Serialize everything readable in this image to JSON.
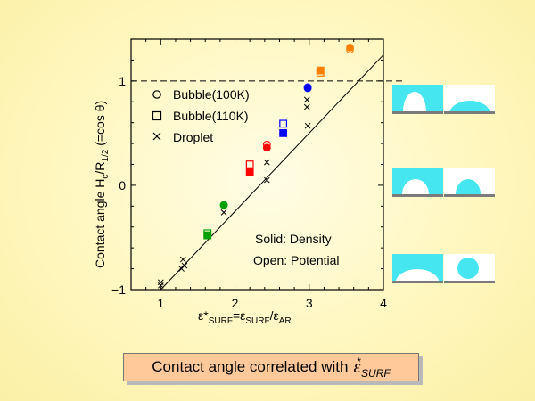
{
  "chart_data": {
    "type": "scatter",
    "xlabel_parts": [
      "ε*",
      "SURF",
      "=ε",
      "SURF",
      "/ε",
      "AR"
    ],
    "ylabel_parts": [
      "Contact angle H",
      "c",
      "/R",
      "1/2",
      " (=cos θ)"
    ],
    "xlim": [
      0.6,
      4.0
    ],
    "ylim": [
      -1.0,
      1.4
    ],
    "x_ticks": [
      "1",
      "2",
      "3",
      "4"
    ],
    "y_ticks": [
      "1",
      "0",
      "−1"
    ],
    "x_tick_values": [
      1,
      2,
      3,
      4
    ],
    "y_tick_values": [
      1,
      0,
      -1
    ],
    "reference_line_y": 1,
    "fit_line": [
      [
        1.0,
        -1.0
      ],
      [
        4.0,
        1.25
      ]
    ],
    "legend": [
      "Bubble(100K)",
      "Bubble(110K)",
      "Droplet"
    ],
    "annotations": [
      "Solid: Density",
      "Open: Potential"
    ],
    "series": [
      {
        "name": "Bubble(100K)",
        "marker": "circle",
        "filled": true,
        "points": [
          [
            1.85,
            -0.19
          ],
          [
            2.43,
            0.36
          ],
          [
            2.98,
            0.93
          ],
          [
            3.55,
            1.32
          ]
        ],
        "colors": [
          "#00a000",
          "#ff0000",
          "#0000ff",
          "#ff8000"
        ]
      },
      {
        "name": "Bubble(100K)",
        "marker": "circle",
        "filled": false,
        "points": [
          [
            1.85,
            -0.19
          ],
          [
            2.43,
            0.39
          ],
          [
            2.98,
            0.94
          ],
          [
            3.55,
            1.3
          ]
        ],
        "colors": [
          "#00a000",
          "#ff0000",
          "#0000ff",
          "#ff8000"
        ]
      },
      {
        "name": "Bubble(110K)",
        "marker": "square",
        "filled": true,
        "points": [
          [
            1.63,
            -0.48
          ],
          [
            2.2,
            0.13
          ],
          [
            2.65,
            0.5
          ],
          [
            3.15,
            1.1
          ]
        ],
        "colors": [
          "#00a000",
          "#ff0000",
          "#0000ff",
          "#ff8000"
        ]
      },
      {
        "name": "Bubble(110K)",
        "marker": "square",
        "filled": false,
        "points": [
          [
            1.63,
            -0.46
          ],
          [
            2.2,
            0.2
          ],
          [
            2.65,
            0.59
          ],
          [
            3.15,
            1.08
          ]
        ],
        "colors": [
          "#00a000",
          "#ff0000",
          "#0000ff",
          "#ff8000"
        ]
      },
      {
        "name": "Droplet",
        "marker": "x",
        "filled": false,
        "points": [
          [
            1.0,
            -0.93
          ],
          [
            1.0,
            -0.96
          ],
          [
            1.3,
            -0.71
          ],
          [
            1.32,
            -0.77
          ],
          [
            1.28,
            -0.8
          ],
          [
            1.85,
            -0.26
          ],
          [
            2.43,
            0.05
          ],
          [
            2.43,
            0.22
          ],
          [
            2.98,
            0.57
          ],
          [
            2.97,
            0.75
          ],
          [
            2.97,
            0.82
          ]
        ],
        "colors": [
          "#000000"
        ]
      }
    ]
  },
  "thumbnails": {
    "rows": [
      {
        "left": "bubble-large",
        "right": "droplet-flat"
      },
      {
        "left": "bubble-medium",
        "right": "droplet-medium"
      },
      {
        "left": "bubble-flat",
        "right": "droplet-round"
      }
    ]
  },
  "caption": {
    "text": "Contact angle correlated with",
    "symbol": "ε",
    "superscript": "*",
    "subscript": "SURF"
  }
}
